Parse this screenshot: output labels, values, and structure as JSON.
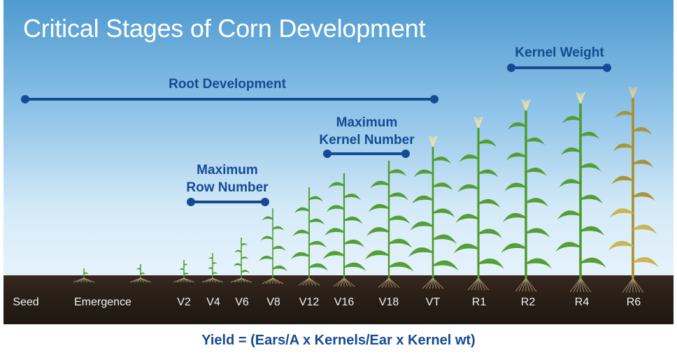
{
  "title": "Critical Stages of Corn Development",
  "spans": {
    "root": "Root Development",
    "row": "Maximum\nRow Number",
    "kernel_number": "Maximum\nKernel Number",
    "kernel_weight": "Kernel Weight"
  },
  "stages": [
    "Seed",
    "Emergence",
    "V2",
    "V4",
    "V6",
    "V8",
    "V12",
    "V16",
    "V18",
    "VT",
    "R1",
    "R2",
    "R4",
    "R6"
  ],
  "formula": "Yield = (Ears/A x Kernels/Ear x Kernel wt)",
  "colors": {
    "accent": "#164a92",
    "leaf": "#4e9a2a",
    "leaf_senescent": "#a8902e",
    "soil": "#2a2018"
  }
}
